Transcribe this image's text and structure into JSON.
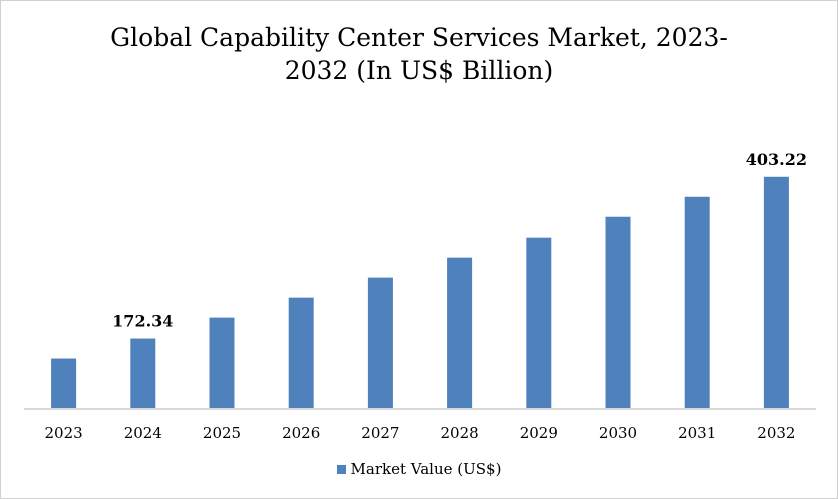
{
  "chart_data": {
    "type": "bar",
    "title": "Global Capability Center Services Market, 2023-2032 (In US$ Billion)",
    "title_lines": [
      "Global Capability Center Services Market, 2023-",
      "2032 (In US$ Billion)"
    ],
    "categories": [
      "2023",
      "2024",
      "2025",
      "2026",
      "2027",
      "2028",
      "2029",
      "2030",
      "2031",
      "2032"
    ],
    "series": [
      {
        "name": "Market Value (US$)",
        "color": "#4f81bd",
        "values": [
          143.8,
          172.34,
          202.2,
          230.7,
          259.3,
          287.8,
          316.3,
          346.2,
          374.7,
          403.22
        ]
      }
    ],
    "data_labels": [
      {
        "category": "2024",
        "text": "172.34"
      },
      {
        "category": "2032",
        "text": "403.22"
      }
    ],
    "ylim": [
      73.2,
      460
    ],
    "y_axis_visible": false,
    "grid": false,
    "legend": "bottom",
    "xlabel": "",
    "ylabel": ""
  }
}
